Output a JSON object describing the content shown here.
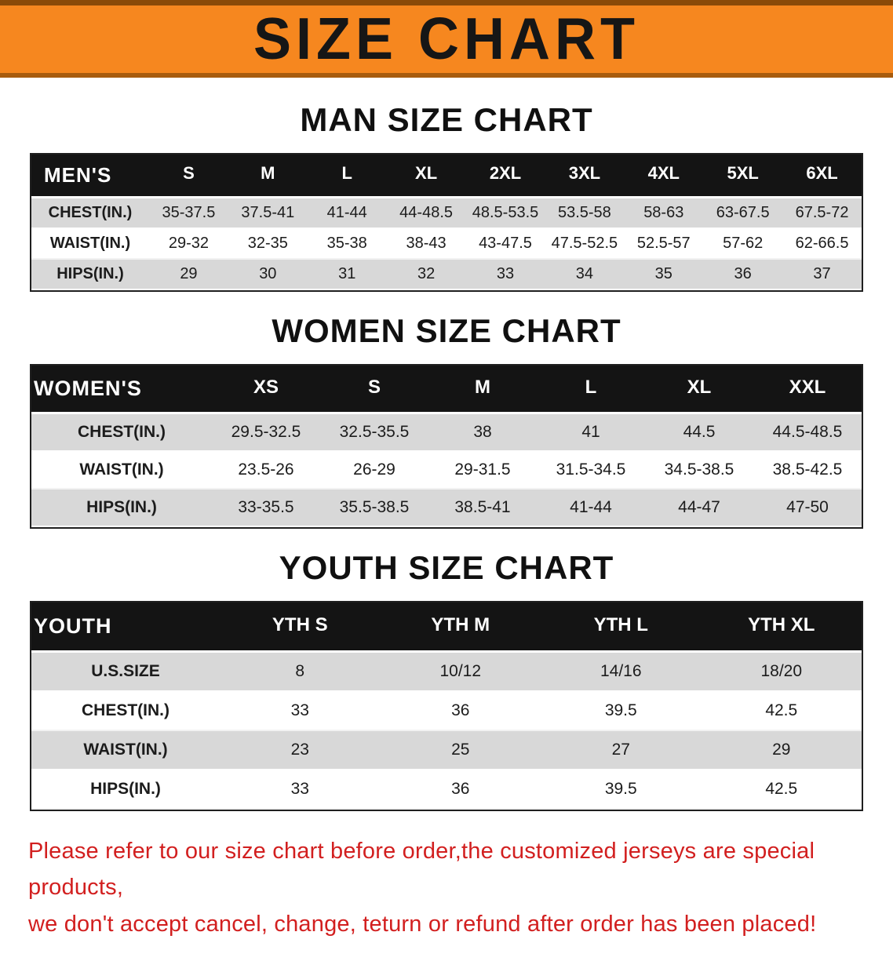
{
  "banner": {
    "title": "SIZE CHART",
    "bg_color": "#f6871f",
    "text_color": "#161616"
  },
  "colors": {
    "header_bg": "#141414",
    "row_shaded": "#d8d8d8",
    "footer_text": "#d21f1f"
  },
  "sections": [
    {
      "heading": "MAN SIZE CHART",
      "table": {
        "header": [
          "MEN'S",
          "S",
          "M",
          "L",
          "XL",
          "2XL",
          "3XL",
          "4XL",
          "5XL",
          "6XL"
        ],
        "rows": [
          {
            "label": "CHEST(IN.)",
            "values": [
              "35-37.5",
              "37.5-41",
              "41-44",
              "44-48.5",
              "48.5-53.5",
              "53.5-58",
              "58-63",
              "63-67.5",
              "67.5-72"
            ]
          },
          {
            "label": "WAIST(IN.)",
            "values": [
              "29-32",
              "32-35",
              "35-38",
              "38-43",
              "43-47.5",
              "47.5-52.5",
              "52.5-57",
              "57-62",
              "62-66.5"
            ]
          },
          {
            "label": "HIPS(IN.)",
            "values": [
              "29",
              "30",
              "31",
              "32",
              "33",
              "34",
              "35",
              "36",
              "37"
            ]
          }
        ]
      }
    },
    {
      "heading": "WOMEN SIZE CHART",
      "table": {
        "header": [
          "WOMEN'S",
          "XS",
          "S",
          "M",
          "L",
          "XL",
          "XXL"
        ],
        "rows": [
          {
            "label": "CHEST(IN.)",
            "values": [
              "29.5-32.5",
              "32.5-35.5",
              "38",
              "41",
              "44.5",
              "44.5-48.5"
            ]
          },
          {
            "label": "WAIST(IN.)",
            "values": [
              "23.5-26",
              "26-29",
              "29-31.5",
              "31.5-34.5",
              "34.5-38.5",
              "38.5-42.5"
            ]
          },
          {
            "label": "HIPS(IN.)",
            "values": [
              "33-35.5",
              "35.5-38.5",
              "38.5-41",
              "41-44",
              "44-47",
              "47-50"
            ]
          }
        ]
      }
    },
    {
      "heading": "YOUTH SIZE CHART",
      "table": {
        "header": [
          "YOUTH",
          "YTH S",
          "YTH M",
          "YTH L",
          "YTH XL"
        ],
        "rows": [
          {
            "label": "U.S.SIZE",
            "values": [
              "8",
              "10/12",
              "14/16",
              "18/20"
            ]
          },
          {
            "label": "CHEST(IN.)",
            "values": [
              "33",
              "36",
              "39.5",
              "42.5"
            ]
          },
          {
            "label": "WAIST(IN.)",
            "values": [
              "23",
              "25",
              "27",
              "29"
            ]
          },
          {
            "label": "HIPS(IN.)",
            "values": [
              "33",
              "36",
              "39.5",
              "42.5"
            ]
          }
        ]
      }
    }
  ],
  "footer": {
    "line1": "Please refer to our size chart before order,the customized jerseys are special products,",
    "line2": "we don't accept cancel, change, teturn or refund after order has been placed!"
  }
}
